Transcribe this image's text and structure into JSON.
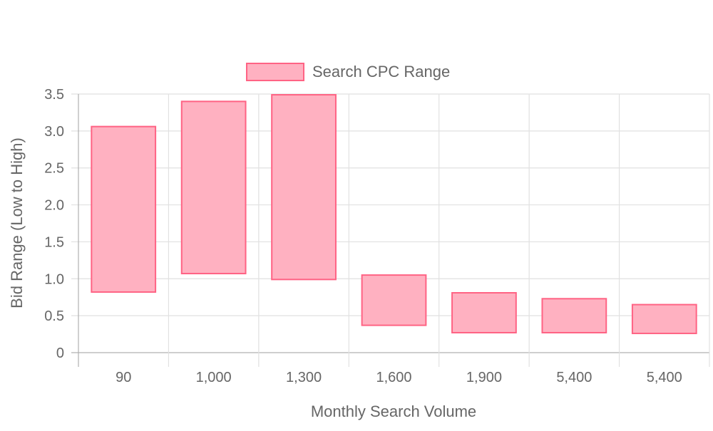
{
  "chart_data": {
    "type": "floating-bar",
    "title": "",
    "xlabel": "Monthly Search Volume",
    "ylabel": "Bid Range (Low to High)",
    "categories": [
      "90",
      "1,000",
      "1,300",
      "1,600",
      "1,900",
      "5,400",
      "5,400"
    ],
    "series": [
      {
        "name": "Search CPC Range",
        "color_fill": "#ffb1c1",
        "color_border": "#ff6384",
        "ranges": [
          [
            0.82,
            3.06
          ],
          [
            1.07,
            3.4
          ],
          [
            0.99,
            3.49
          ],
          [
            0.37,
            1.05
          ],
          [
            0.27,
            0.81
          ],
          [
            0.27,
            0.73
          ],
          [
            0.26,
            0.65
          ]
        ]
      }
    ],
    "ylim": [
      0,
      3.5
    ],
    "yticks": [
      "0",
      "0.5",
      "1.0",
      "1.5",
      "2.0",
      "2.5",
      "3.0",
      "3.5"
    ],
    "ytick_values": [
      0,
      0.5,
      1.0,
      1.5,
      2.0,
      2.5,
      3.0,
      3.5
    ],
    "grid": true,
    "legend_position": "top"
  }
}
